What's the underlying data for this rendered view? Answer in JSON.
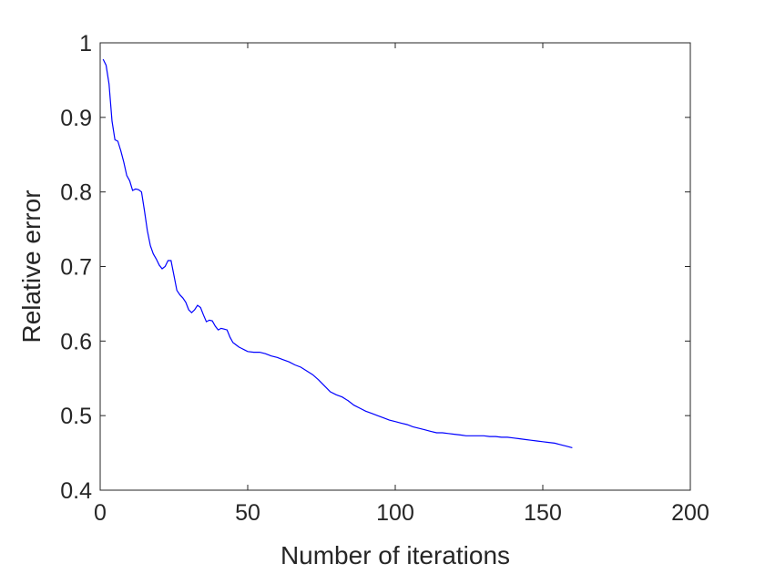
{
  "chart_data": {
    "type": "line",
    "title": "",
    "xlabel": "Number of iterations",
    "ylabel": "Relative error",
    "xlim": [
      0,
      200
    ],
    "ylim": [
      0.4,
      1
    ],
    "xticks": [
      0,
      50,
      100,
      150,
      200
    ],
    "yticks": [
      0.4,
      0.5,
      0.6,
      0.7,
      0.8,
      0.9,
      1
    ],
    "xtick_labels": [
      "0",
      "50",
      "100",
      "150",
      "200"
    ],
    "ytick_labels": [
      "0.4",
      "0.5",
      "0.6",
      "0.7",
      "0.8",
      "0.9",
      "1"
    ],
    "grid": false,
    "legend": "none",
    "colors": {
      "line": "#0000ff",
      "axes": "#262626",
      "background": "#ffffff"
    },
    "series": [
      {
        "x": [
          1,
          2,
          3,
          4,
          5,
          6,
          7,
          8,
          9,
          10,
          11,
          12,
          13,
          14,
          15,
          16,
          17,
          18,
          19,
          20,
          21,
          22,
          23,
          24,
          25,
          26,
          27,
          28,
          29,
          30,
          31,
          32,
          33,
          34,
          35,
          36,
          37,
          38,
          39,
          40,
          41,
          42,
          43,
          44,
          45,
          46,
          47,
          48,
          49,
          50,
          52,
          54,
          56,
          58,
          60,
          62,
          64,
          66,
          68,
          70,
          72,
          74,
          76,
          78,
          80,
          82,
          84,
          86,
          88,
          90,
          92,
          94,
          96,
          98,
          100,
          102,
          104,
          106,
          108,
          110,
          112,
          114,
          116,
          118,
          120,
          122,
          124,
          126,
          128,
          130,
          132,
          134,
          136,
          138,
          140,
          142,
          144,
          146,
          148,
          150,
          152,
          154,
          156,
          158,
          160
        ],
        "y": [
          0.978,
          0.97,
          0.945,
          0.895,
          0.87,
          0.868,
          0.855,
          0.84,
          0.822,
          0.815,
          0.802,
          0.804,
          0.803,
          0.8,
          0.775,
          0.748,
          0.728,
          0.717,
          0.71,
          0.702,
          0.697,
          0.7,
          0.708,
          0.708,
          0.688,
          0.668,
          0.662,
          0.658,
          0.652,
          0.642,
          0.638,
          0.642,
          0.648,
          0.645,
          0.635,
          0.626,
          0.628,
          0.627,
          0.62,
          0.615,
          0.617,
          0.616,
          0.615,
          0.605,
          0.598,
          0.595,
          0.592,
          0.59,
          0.588,
          0.586,
          0.585,
          0.585,
          0.583,
          0.58,
          0.578,
          0.575,
          0.572,
          0.568,
          0.565,
          0.56,
          0.555,
          0.548,
          0.54,
          0.532,
          0.528,
          0.525,
          0.52,
          0.514,
          0.51,
          0.506,
          0.503,
          0.5,
          0.497,
          0.494,
          0.492,
          0.49,
          0.488,
          0.485,
          0.483,
          0.481,
          0.479,
          0.477,
          0.477,
          0.476,
          0.475,
          0.474,
          0.473,
          0.473,
          0.473,
          0.473,
          0.472,
          0.472,
          0.471,
          0.471,
          0.47,
          0.469,
          0.468,
          0.467,
          0.466,
          0.465,
          0.464,
          0.463,
          0.461,
          0.459,
          0.457
        ]
      }
    ]
  }
}
